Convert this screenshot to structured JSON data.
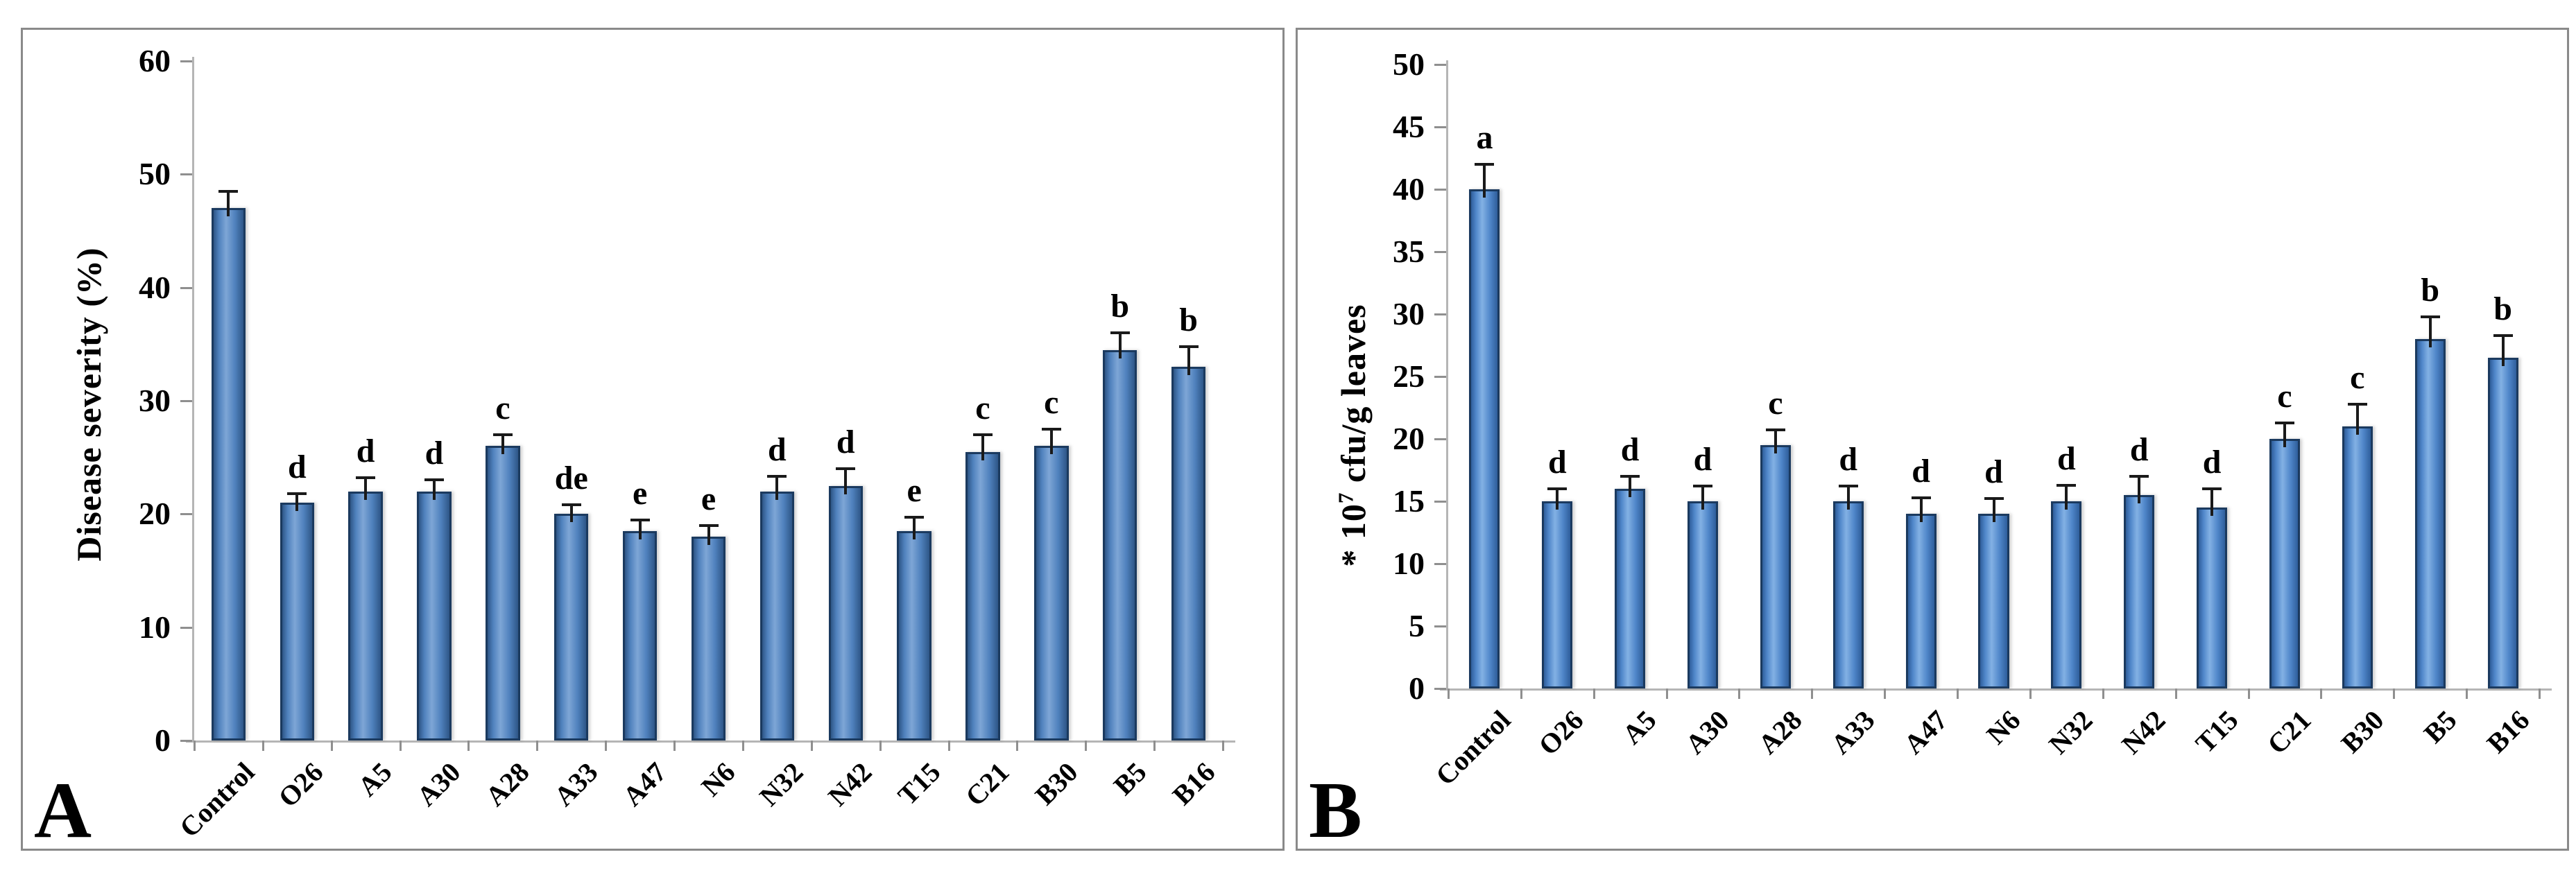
{
  "figure": {
    "panels": [
      {
        "label": "A"
      },
      {
        "label": "B"
      }
    ]
  },
  "axis_style": {
    "axis_line": "#b5b5b5",
    "tick": "#8f8f8f",
    "error_bar": "#1a1a1a",
    "text": "#000000",
    "panel_border": "#8a8a8a"
  },
  "chart_data": [
    {
      "type": "bar",
      "panel": "A",
      "ylabel": [
        {
          "t": "Disease severity (%)"
        }
      ],
      "ylabel_text": "Disease severity (%)",
      "ylim": [
        0,
        60
      ],
      "yticks": [
        0,
        10,
        20,
        30,
        40,
        50,
        60
      ],
      "grid": false,
      "legend": "none",
      "categories": [
        "Control",
        "O26",
        "A5",
        "A30",
        "A28",
        "A33",
        "A47",
        "N6",
        "N32",
        "N42",
        "T15",
        "C21",
        "B30",
        "B5",
        "B16"
      ],
      "values": [
        47,
        21,
        22,
        22,
        26,
        20,
        18.5,
        18,
        22,
        22.5,
        18.5,
        25.5,
        26,
        34.5,
        33
      ],
      "errors": [
        1.5,
        0.8,
        1.2,
        1.0,
        1.0,
        0.8,
        1.0,
        1.0,
        1.3,
        1.5,
        1.2,
        1.5,
        1.5,
        1.5,
        1.8
      ],
      "letters": [
        "",
        "d",
        "d",
        "d",
        "c",
        "de",
        "e",
        "e",
        "d",
        "d",
        "e",
        "c",
        "c",
        "b",
        "b"
      ],
      "colors": {
        "fill": "#4f81bd",
        "light": "#7ea6d6",
        "dark": "#2e5687",
        "border": "#1b3a5f"
      }
    },
    {
      "type": "bar",
      "panel": "B",
      "ylabel": [
        {
          "t": "* 10"
        },
        {
          "t": "7",
          "sup": true
        },
        {
          "t": " cfu/g leaves"
        }
      ],
      "ylabel_text": "* 10⁷ cfu/g leaves",
      "ylim": [
        0,
        50
      ],
      "yticks": [
        0,
        5,
        10,
        15,
        20,
        25,
        30,
        35,
        40,
        45,
        50
      ],
      "grid": false,
      "legend": "none",
      "categories": [
        "Control",
        "O26",
        "A5",
        "A30",
        "A28",
        "A33",
        "A47",
        "N6",
        "N32",
        "N42",
        "T15",
        "C21",
        "B30",
        "B5",
        "B16"
      ],
      "values": [
        40,
        15,
        16,
        15,
        19.5,
        15,
        14,
        14,
        15,
        15.5,
        14.5,
        20,
        21,
        28,
        26.5
      ],
      "errors": [
        2.0,
        1.0,
        1.0,
        1.2,
        1.2,
        1.2,
        1.3,
        1.2,
        1.3,
        1.5,
        1.5,
        1.3,
        1.8,
        1.8,
        1.8
      ],
      "letters": [
        "a",
        "d",
        "d",
        "d",
        "c",
        "d",
        "d",
        "d",
        "d",
        "d",
        "d",
        "c",
        "c",
        "b",
        "b"
      ],
      "colors": {
        "fill": "#4f86c9",
        "light": "#83b1e4",
        "dark": "#2f5e9b",
        "border": "#1b3a5f"
      }
    }
  ]
}
